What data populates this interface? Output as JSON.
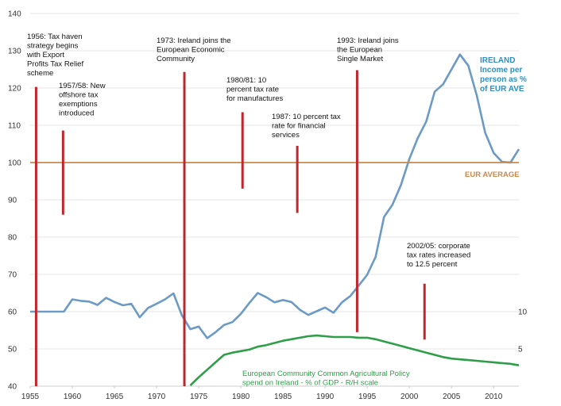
{
  "chart_data": {
    "type": "line",
    "title": "",
    "xlabel": "",
    "ylabel": "",
    "xlim": [
      1955,
      2013
    ],
    "ylim": [
      40,
      140
    ],
    "x_ticks": [
      "1955",
      "1960",
      "1965",
      "1970",
      "1975",
      "1980",
      "1985",
      "1990",
      "1995",
      "2000",
      "2005",
      "2010"
    ],
    "y_ticks": [
      "40",
      "50",
      "60",
      "70",
      "80",
      "90",
      "100",
      "110",
      "120",
      "130",
      "140"
    ],
    "right_axis_ticks": [
      {
        "label": "10",
        "value": 10
      },
      {
        "label": "5",
        "value": 5
      }
    ],
    "grid": true,
    "series": [
      {
        "name": "IRELAND Income per person as % of EUR AVE",
        "color": "#6b9ac4",
        "x": [
          1955,
          1956,
          1957,
          1958,
          1959,
          1960,
          1961,
          1962,
          1963,
          1964,
          1965,
          1966,
          1967,
          1968,
          1969,
          1970,
          1971,
          1972,
          1973,
          1974,
          1975,
          1976,
          1977,
          1978,
          1979,
          1980,
          1981,
          1982,
          1983,
          1984,
          1985,
          1986,
          1987,
          1988,
          1989,
          1990,
          1991,
          1992,
          1993,
          1994,
          1995,
          1996,
          1997,
          1998,
          1999,
          2000,
          2001,
          2002,
          2003,
          2004,
          2005,
          2006,
          2007,
          2008,
          2009,
          2010,
          2011,
          2012,
          2013
        ],
        "values": [
          60,
          60,
          60,
          60,
          60,
          63.3,
          62.9,
          62.7,
          61.8,
          63.7,
          62.6,
          61.7,
          62.1,
          58.5,
          61,
          62.1,
          63.3,
          64.9,
          59,
          55.3,
          56,
          52.9,
          54.5,
          56.4,
          57.2,
          59.4,
          62.3,
          65,
          63.9,
          62.5,
          63.1,
          62.6,
          60.5,
          59.1,
          60.1,
          61.1,
          59.7,
          62.5,
          64.2,
          67,
          69.9,
          74.7,
          85.4,
          88.7,
          94,
          101,
          106.6,
          111,
          119,
          121,
          125,
          129,
          126,
          118,
          108,
          102.6,
          100.2,
          100,
          103.6
        ]
      },
      {
        "name": "EUR AVERAGE",
        "color": "#c8894b",
        "x": [
          1955,
          2013
        ],
        "values": [
          100,
          100
        ]
      },
      {
        "name": "European Community Common Agricultural Policy spend on Ireland - % of GDP - R/H scale",
        "color": "#2e9e48",
        "axis": "right",
        "x": [
          1974,
          1975,
          1976,
          1977,
          1978,
          1979,
          1980,
          1981,
          1982,
          1983,
          1984,
          1985,
          1986,
          1987,
          1988,
          1989,
          1990,
          1991,
          1992,
          1993,
          1994,
          1995,
          1996,
          1997,
          1998,
          1999,
          2000,
          2001,
          2002,
          2003,
          2004,
          2005,
          2006,
          2007,
          2008,
          2009,
          2010,
          2011,
          2012,
          2013
        ],
        "values": [
          0.1,
          1.2,
          2.2,
          3.2,
          4.2,
          4.5,
          4.7,
          4.9,
          5.3,
          5.5,
          5.8,
          6.1,
          6.3,
          6.5,
          6.7,
          6.8,
          6.7,
          6.6,
          6.6,
          6.6,
          6.5,
          6.5,
          6.3,
          6.0,
          5.7,
          5.4,
          5.1,
          4.8,
          4.5,
          4.2,
          3.9,
          3.7,
          3.6,
          3.5,
          3.4,
          3.3,
          3.2,
          3.1,
          3.0,
          2.8
        ]
      }
    ],
    "events": [
      {
        "x": 1955.7,
        "y_from": 40,
        "y_to": 120.3,
        "label": [
          "1956: Tax haven",
          "strategy begins",
          "with Export",
          "Profits Tax Relief",
          "scheme"
        ]
      },
      {
        "x": 1958.9,
        "y_from": 86,
        "y_to": 108.6,
        "label": [
          "1957/58: New",
          "offshore tax",
          "exemptions",
          "introduced"
        ]
      },
      {
        "x": 1973.3,
        "y_from": 40,
        "y_to": 124.3,
        "label": [
          "1973: Ireland joins the",
          "European Economic",
          "Community"
        ]
      },
      {
        "x": 1980.2,
        "y_from": 93,
        "y_to": 113.5,
        "label": [
          "1980/81: 10",
          "percent tax rate",
          "for manufactures"
        ]
      },
      {
        "x": 1986.7,
        "y_from": 86.5,
        "y_to": 104.5,
        "label": [
          "1987: 10 percent tax",
          "rate for financial",
          "services"
        ]
      },
      {
        "x": 1993.8,
        "y_from": 54.5,
        "y_to": 124.8,
        "label": [
          "1993: Ireland joins",
          "the European",
          "Single Market"
        ]
      },
      {
        "x": 2001.8,
        "y_from": 52.5,
        "y_to": 67.5,
        "label": [
          "2002/05: corporate",
          "tax rates increased",
          "to 12.5 percent"
        ]
      }
    ],
    "series_labels": {
      "ireland": [
        "IRELAND",
        "Income per",
        "person as %",
        "of EUR AVE"
      ],
      "eur_average": "EUR AVERAGE",
      "cap": [
        "European Community Common Agricultural Policy",
        "spend on Ireland - % of GDP - R/H scale"
      ]
    },
    "colors": {
      "event_line": "#c0272d",
      "grid": "#e6e6e6",
      "axis": "#cccccc",
      "ireland_label": "#2f8fc4",
      "eur_label": "#c8894b",
      "cap_label": "#2e9e48"
    }
  }
}
